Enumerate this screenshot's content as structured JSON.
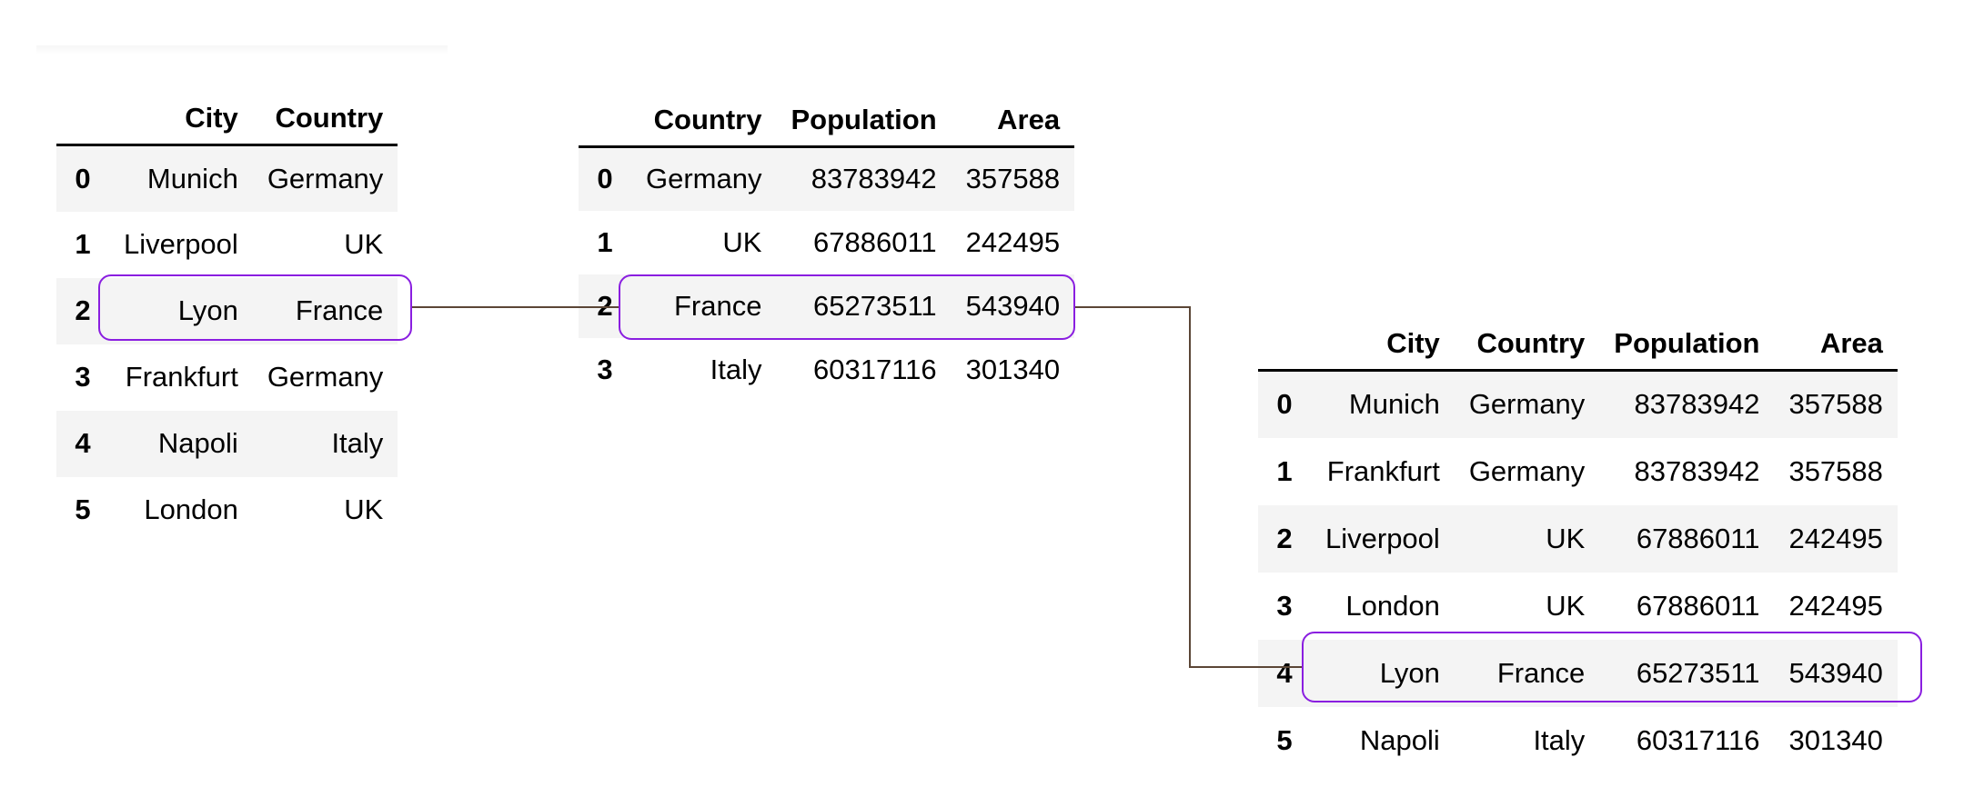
{
  "colors": {
    "highlight_border": "#8a1ee0",
    "connector": "#5b4636",
    "stripe": "#f4f4f4"
  },
  "left_table": {
    "columns": [
      "City",
      "Country"
    ],
    "rows": [
      {
        "idx": "0",
        "city": "Munich",
        "country": "Germany"
      },
      {
        "idx": "1",
        "city": "Liverpool",
        "country": "UK"
      },
      {
        "idx": "2",
        "city": "Lyon",
        "country": "France"
      },
      {
        "idx": "3",
        "city": "Frankfurt",
        "country": "Germany"
      },
      {
        "idx": "4",
        "city": "Napoli",
        "country": "Italy"
      },
      {
        "idx": "5",
        "city": "London",
        "country": "UK"
      }
    ]
  },
  "right_table": {
    "columns": [
      "Country",
      "Population",
      "Area"
    ],
    "rows": [
      {
        "idx": "0",
        "country": "Germany",
        "population": "83783942",
        "area": "357588"
      },
      {
        "idx": "1",
        "country": "UK",
        "population": "67886011",
        "area": "242495"
      },
      {
        "idx": "2",
        "country": "France",
        "population": "65273511",
        "area": "543940"
      },
      {
        "idx": "3",
        "country": "Italy",
        "population": "60317116",
        "area": "301340"
      }
    ]
  },
  "merged_table": {
    "columns": [
      "City",
      "Country",
      "Population",
      "Area"
    ],
    "rows": [
      {
        "idx": "0",
        "city": "Munich",
        "country": "Germany",
        "population": "83783942",
        "area": "357588"
      },
      {
        "idx": "1",
        "city": "Frankfurt",
        "country": "Germany",
        "population": "83783942",
        "area": "357588"
      },
      {
        "idx": "2",
        "city": "Liverpool",
        "country": "UK",
        "population": "67886011",
        "area": "242495"
      },
      {
        "idx": "3",
        "city": "London",
        "country": "UK",
        "population": "67886011",
        "area": "242495"
      },
      {
        "idx": "4",
        "city": "Lyon",
        "country": "France",
        "population": "65273511",
        "area": "543940"
      },
      {
        "idx": "5",
        "city": "Napoli",
        "country": "Italy",
        "population": "60317116",
        "area": "301340"
      }
    ]
  }
}
